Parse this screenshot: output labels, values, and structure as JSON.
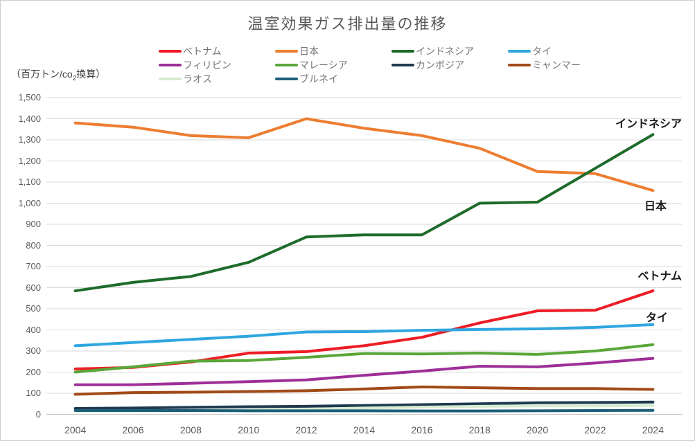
{
  "title": "温室効果ガス排出量の推移",
  "unit_label": {
    "prefix": "（百万トン/co",
    "sub": "2",
    "suffix": "換算）"
  },
  "annotations": {
    "indonesia": "インドネシア",
    "japan": "日本",
    "vietnam": "ベトナム",
    "thailand": "タイ"
  },
  "chart_data": {
    "type": "line",
    "title": "温室効果ガス排出量の推移",
    "ylabel": "（百万トン/co2換算）",
    "xlabel": "",
    "x": [
      2004,
      2006,
      2008,
      2010,
      2012,
      2014,
      2016,
      2018,
      2020,
      2022,
      2024
    ],
    "x_tick_labels": [
      "2004",
      "2006",
      "2008",
      "2010",
      "2012",
      "2014",
      "2016",
      "2018",
      "2020",
      "2022",
      "2024"
    ],
    "ylim": [
      0,
      1500
    ],
    "y_tick_step": 100,
    "y_ticks": [
      0,
      100,
      200,
      300,
      400,
      500,
      600,
      700,
      800,
      900,
      1000,
      1100,
      1200,
      1300,
      1400,
      1500
    ],
    "grid": true,
    "legend_position": "top",
    "series": [
      {
        "name": "ベトナム",
        "color": "#EE1C25",
        "values": [
          215,
          222,
          248,
          290,
          297,
          325,
          365,
          433,
          490,
          493,
          585
        ]
      },
      {
        "name": "日本",
        "color": "#ED7D31",
        "values": [
          1380,
          1360,
          1320,
          1310,
          1400,
          1355,
          1320,
          1260,
          1150,
          1140,
          1060
        ]
      },
      {
        "name": "インドネシア",
        "color": "#1E6B2B",
        "values": [
          585,
          625,
          653,
          720,
          840,
          850,
          850,
          1000,
          1005,
          1165,
          1325
        ]
      },
      {
        "name": "タイ",
        "color": "#2FA6E0",
        "values": [
          325,
          340,
          355,
          370,
          390,
          392,
          398,
          402,
          405,
          412,
          425
        ]
      },
      {
        "name": "フィリピン",
        "color": "#9E2F97",
        "values": [
          140,
          140,
          147,
          155,
          163,
          185,
          205,
          228,
          225,
          243,
          265
        ]
      },
      {
        "name": "マレーシア",
        "color": "#5AA739",
        "values": [
          200,
          225,
          252,
          255,
          270,
          288,
          286,
          290,
          284,
          300,
          330
        ]
      },
      {
        "name": "カンボジア",
        "color": "#1E3A50",
        "values": [
          28,
          30,
          33,
          36,
          38,
          42,
          46,
          50,
          55,
          56,
          58
        ]
      },
      {
        "name": "ミャンマー",
        "color": "#A14A17",
        "values": [
          95,
          103,
          105,
          108,
          112,
          120,
          130,
          126,
          122,
          122,
          118
        ]
      },
      {
        "name": "ラオス",
        "color": "#D7EBD1",
        "values": [
          15,
          16,
          18,
          20,
          24,
          30,
          34,
          38,
          40,
          40,
          42
        ]
      },
      {
        "name": "ブルネイ",
        "color": "#1D5F79",
        "values": [
          18,
          18,
          18,
          17,
          17,
          17,
          16,
          16,
          17,
          18,
          19
        ]
      }
    ]
  }
}
